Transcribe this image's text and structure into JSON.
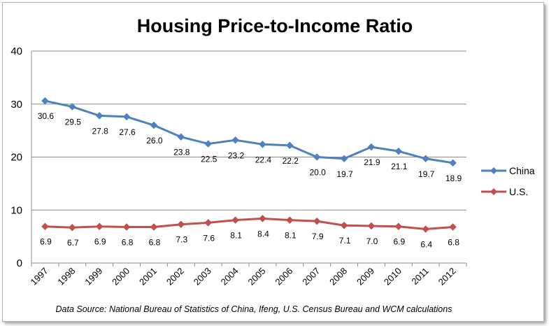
{
  "chart_data": {
    "type": "line",
    "title": "Housing Price-to-Income Ratio",
    "xlabel": "",
    "ylabel": "",
    "ylim": [
      0,
      40
    ],
    "yticks": [
      0,
      10,
      20,
      30,
      40
    ],
    "grid": true,
    "legend_position": "right",
    "categories": [
      "1997",
      "1998",
      "1999",
      "2000",
      "2001",
      "2002",
      "2003",
      "2004",
      "2005",
      "2006",
      "2007",
      "2008",
      "2009",
      "2010",
      "2011",
      "2012"
    ],
    "series": [
      {
        "name": "China",
        "color": "#4f81bd",
        "values": [
          30.6,
          29.5,
          27.8,
          27.6,
          26.0,
          23.8,
          22.5,
          23.2,
          22.4,
          22.2,
          20.0,
          19.7,
          21.9,
          21.1,
          19.7,
          18.9
        ],
        "labels": [
          "30.6",
          "29.5",
          "27.8",
          "27.6",
          "26.0",
          "23.8",
          "22.5",
          "23.2",
          "22.4",
          "22.2",
          "20.0",
          "19.7",
          "21.9",
          "21.1",
          "19.7",
          "18.9"
        ]
      },
      {
        "name": "U.S.",
        "color": "#c0504d",
        "values": [
          6.9,
          6.7,
          6.9,
          6.8,
          6.8,
          7.3,
          7.6,
          8.1,
          8.4,
          8.1,
          7.9,
          7.1,
          7.0,
          6.9,
          6.4,
          6.8
        ],
        "labels": [
          "6.9",
          "6.7",
          "6.9",
          "6.8",
          "6.8",
          "7.3",
          "7.6",
          "8.1",
          "8.4",
          "8.1",
          "7.9",
          "7.1",
          "7.0",
          "6.9",
          "6.4",
          "6.8"
        ]
      }
    ],
    "source_note": "Data Source: National Bureau of Statistics of China, Ifeng, U.S. Census Bureau and WCM calculations"
  }
}
